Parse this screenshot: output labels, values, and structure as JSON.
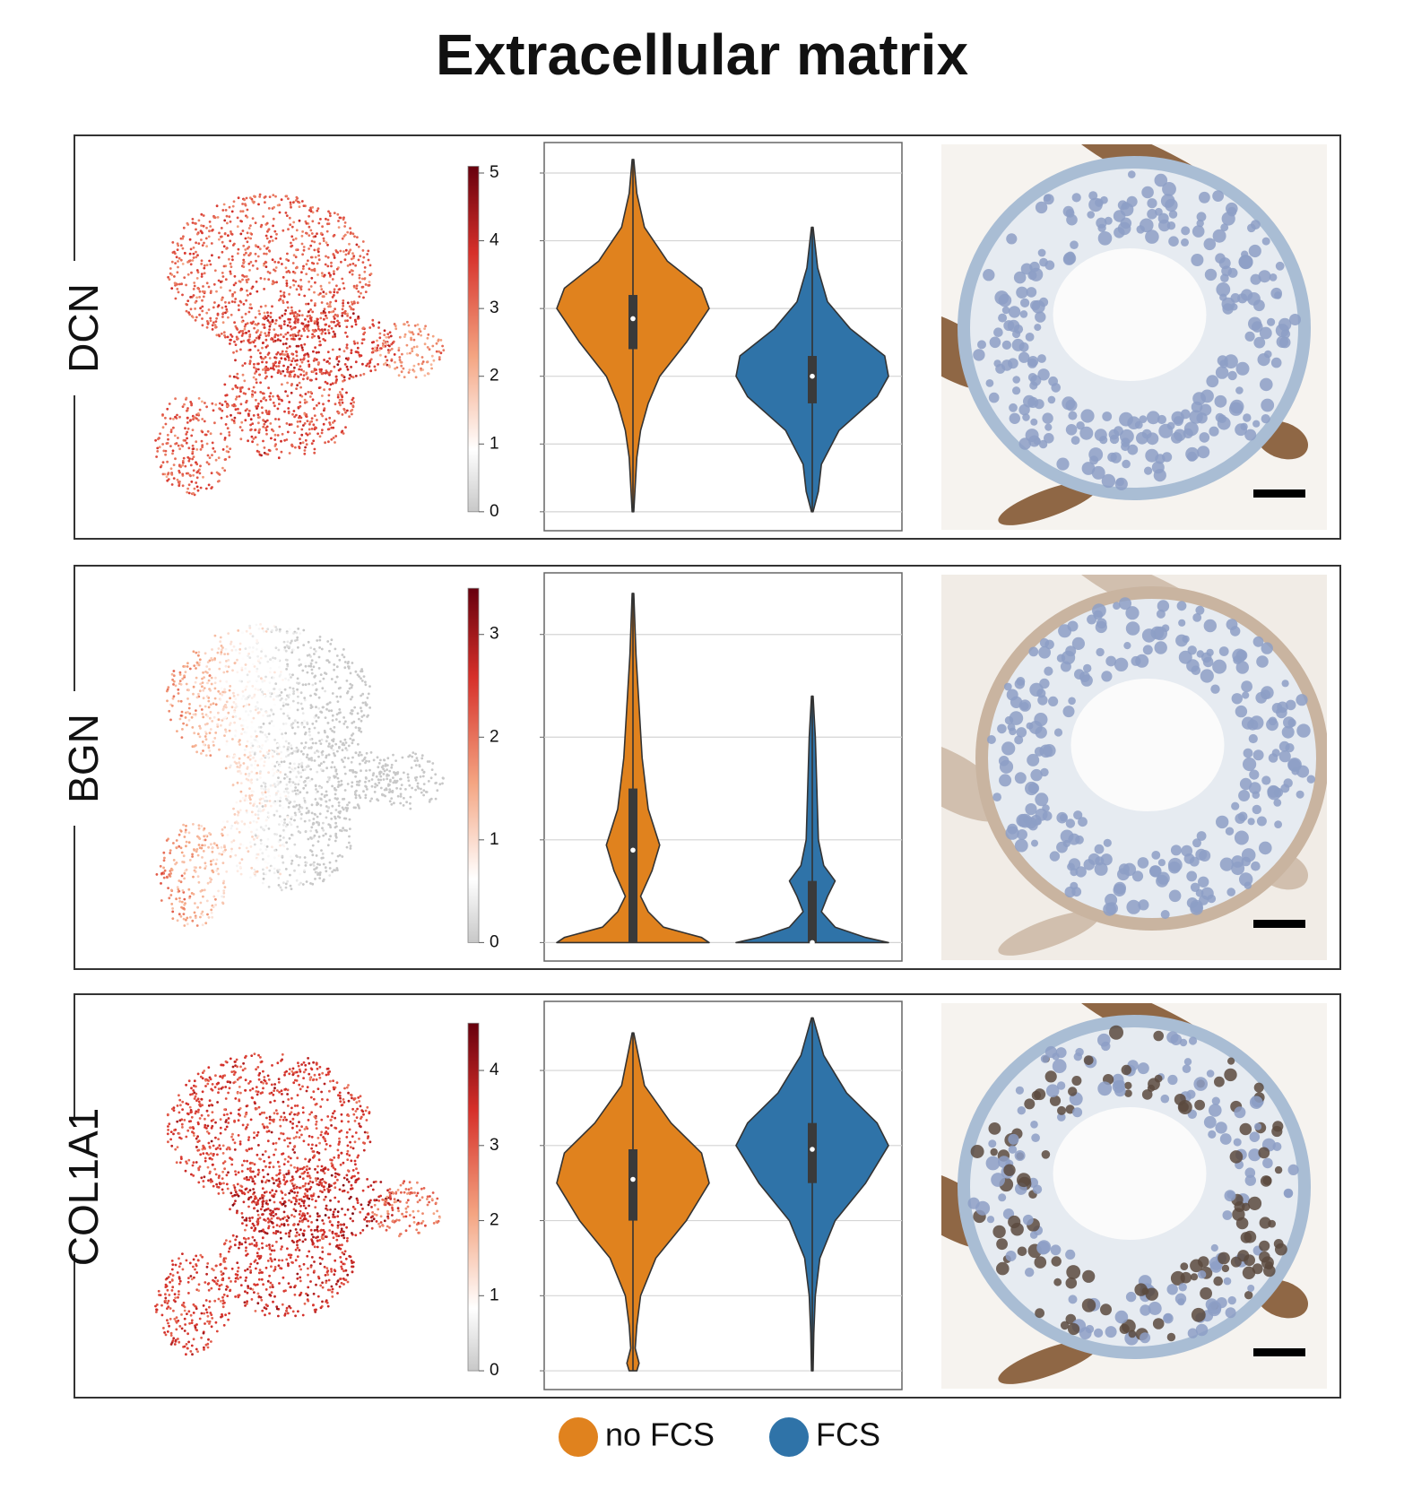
{
  "title": "Extracellular matrix",
  "chart_data": [
    {
      "type": "violin",
      "title": "DCN",
      "ylim": [
        -0.28,
        5.45
      ],
      "yticks": [
        0,
        1,
        2,
        3,
        4,
        5
      ],
      "clim": [
        0,
        5.1
      ],
      "grid": true,
      "series": [
        {
          "name": "no FCS",
          "color": "#e0821e",
          "min": 0,
          "q1": 2.4,
          "median": 2.85,
          "q3": 3.2,
          "max": 5.2,
          "profile": {
            "y": [
              0,
              0.8,
              1.2,
              1.6,
              2.0,
              2.5,
              3.0,
              3.3,
              3.7,
              4.2,
              4.7,
              5.2
            ],
            "width": [
              0.01,
              0.05,
              0.1,
              0.2,
              0.35,
              0.7,
              1,
              0.9,
              0.45,
              0.15,
              0.05,
              0.01
            ]
          }
        },
        {
          "name": "FCS",
          "color": "#2f73a8",
          "min": 0,
          "q1": 1.6,
          "median": 2.0,
          "q3": 2.3,
          "max": 4.2,
          "profile": {
            "y": [
              0,
              0.3,
              0.7,
              1.2,
              1.7,
              2.0,
              2.3,
              2.7,
              3.1,
              3.6,
              4.2
            ],
            "width": [
              0.01,
              0.08,
              0.12,
              0.35,
              0.85,
              1,
              0.95,
              0.5,
              0.2,
              0.07,
              0.01
            ]
          }
        }
      ]
    },
    {
      "type": "violin",
      "title": "BGN",
      "ylim": [
        -0.18,
        3.6
      ],
      "yticks": [
        0,
        1,
        2,
        3
      ],
      "clim": [
        0,
        3.45
      ],
      "grid": true,
      "series": [
        {
          "name": "no FCS",
          "color": "#e0821e",
          "min": 0,
          "q1": 0,
          "median": 0.9,
          "q3": 1.5,
          "max": 3.4,
          "profile": {
            "y": [
              0,
              0.05,
              0.15,
              0.3,
              0.45,
              0.7,
              0.95,
              1.3,
              1.8,
              2.3,
              2.8,
              3.4
            ],
            "width": [
              1,
              0.9,
              0.4,
              0.2,
              0.1,
              0.25,
              0.35,
              0.2,
              0.12,
              0.08,
              0.04,
              0.01
            ]
          }
        },
        {
          "name": "FCS",
          "color": "#2f73a8",
          "min": 0,
          "q1": 0,
          "median": 0,
          "q3": 0.6,
          "max": 2.4,
          "profile": {
            "y": [
              0,
              0.05,
              0.15,
              0.3,
              0.45,
              0.6,
              0.75,
              1.0,
              1.5,
              2.0,
              2.4
            ],
            "width": [
              1,
              0.7,
              0.3,
              0.12,
              0.2,
              0.3,
              0.15,
              0.08,
              0.06,
              0.04,
              0.01
            ]
          }
        }
      ]
    },
    {
      "type": "violin",
      "title": "COL1A1",
      "ylim": [
        -0.25,
        4.92
      ],
      "yticks": [
        0,
        1,
        2,
        3,
        4
      ],
      "clim": [
        0,
        4.63
      ],
      "grid": true,
      "series": [
        {
          "name": "no FCS",
          "color": "#e0821e",
          "min": 0,
          "q1": 2.0,
          "median": 2.55,
          "q3": 2.95,
          "max": 4.5,
          "profile": {
            "y": [
              0,
              0.1,
              0.3,
              0.6,
              1.0,
              1.5,
              2.0,
              2.5,
              2.9,
              3.3,
              3.8,
              4.5
            ],
            "width": [
              0.05,
              0.08,
              0.03,
              0.05,
              0.1,
              0.3,
              0.7,
              1,
              0.9,
              0.5,
              0.15,
              0.01
            ]
          }
        },
        {
          "name": "FCS",
          "color": "#2f73a8",
          "min": 0,
          "q1": 2.5,
          "median": 2.95,
          "q3": 3.3,
          "max": 4.7,
          "profile": {
            "y": [
              0,
              0.5,
              1.0,
              1.5,
              2.0,
              2.5,
              3.0,
              3.3,
              3.7,
              4.2,
              4.7
            ],
            "width": [
              0.01,
              0.02,
              0.04,
              0.1,
              0.3,
              0.7,
              1,
              0.85,
              0.45,
              0.15,
              0.01
            ]
          }
        }
      ]
    }
  ]
}
